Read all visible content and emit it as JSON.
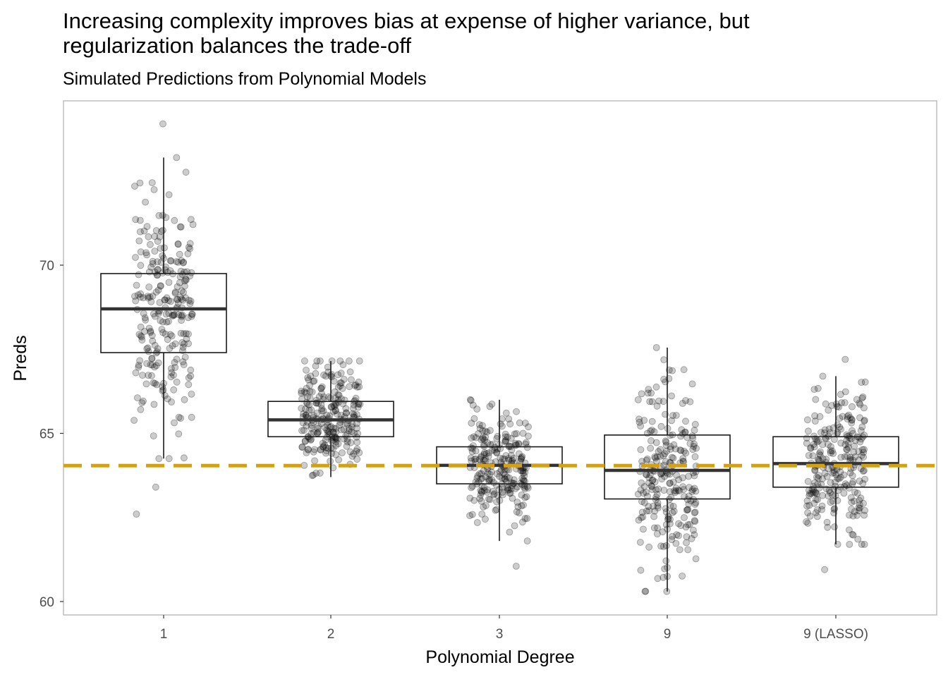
{
  "chart_data": {
    "type": "boxplot",
    "title": "Increasing complexity improves bias at expense of higher variance, but\nregularization balances the trade-off",
    "subtitle": "Simulated Predictions from Polynomial Models",
    "xlabel": "Polynomial Degree",
    "ylabel": "Preds",
    "categories": [
      "1",
      "2",
      "3",
      "9",
      "9 (LASSO)"
    ],
    "ylim": [
      59.6,
      74.9
    ],
    "yticks": [
      60,
      65,
      70
    ],
    "reference_line": {
      "y": 64.04,
      "style": "dashed",
      "color": "#D4A017"
    },
    "boxes": [
      {
        "category": "1",
        "whisker_low": 64.25,
        "q1": 67.4,
        "median": 68.7,
        "q3": 69.75,
        "whisker_high": 73.2,
        "outliers": [
          63.4,
          62.6,
          74.2,
          73.2
        ]
      },
      {
        "category": "2",
        "whisker_low": 63.7,
        "q1": 64.9,
        "median": 65.4,
        "q3": 65.95,
        "whisker_high": 67.15,
        "outliers": []
      },
      {
        "category": "3",
        "whisker_low": 61.8,
        "q1": 63.5,
        "median": 64.05,
        "q3": 64.6,
        "whisker_high": 66.0,
        "outliers": [
          61.05
        ]
      },
      {
        "category": "9",
        "whisker_low": 60.3,
        "q1": 63.05,
        "median": 63.9,
        "q3": 64.95,
        "whisker_high": 67.55,
        "outliers": []
      },
      {
        "category": "9 (LASSO)",
        "whisker_low": 61.7,
        "q1": 63.4,
        "median": 64.1,
        "q3": 64.9,
        "whisker_high": 66.7,
        "outliers": [
          60.95,
          67.2
        ]
      }
    ],
    "points_per_group": 250,
    "point_color": "#000000",
    "point_alpha": 0.2,
    "grid": false,
    "legend": "none"
  }
}
